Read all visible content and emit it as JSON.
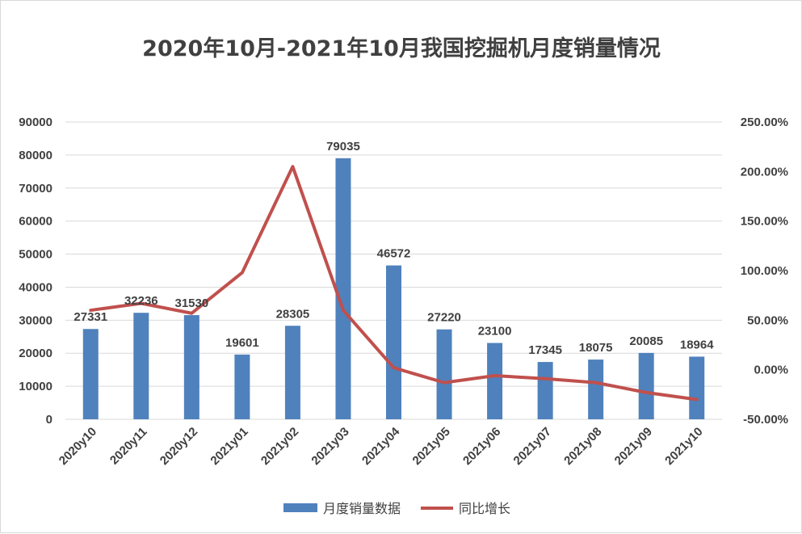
{
  "chart_data": {
    "type": "bar+line",
    "title": "2020年10月-2021年10月我国挖掘机月度销量情况",
    "categories": [
      "2020y10",
      "2020y11",
      "2020y12",
      "2021y01",
      "2021y02",
      "2021y03",
      "2021y04",
      "2021y05",
      "2021y06",
      "2021y07",
      "2021y08",
      "2021y09",
      "2021y10"
    ],
    "series": [
      {
        "name": "月度销量数据",
        "kind": "bar",
        "axis": "left",
        "color": "#4f81bd",
        "values": [
          27331,
          32236,
          31530,
          19601,
          28305,
          79035,
          46572,
          27220,
          23100,
          17345,
          18075,
          20085,
          18964
        ]
      },
      {
        "name": "同比增长",
        "kind": "line",
        "axis": "right",
        "color": "#c0504d",
        "values": [
          0.6,
          0.67,
          0.57,
          0.98,
          2.05,
          0.6,
          0.02,
          -0.13,
          -0.06,
          -0.09,
          -0.13,
          -0.23,
          -0.3
        ]
      }
    ],
    "y_left": {
      "min": 0,
      "max": 90000,
      "step": 10000
    },
    "y_right": {
      "min": -0.5,
      "max": 2.5,
      "step": 0.5
    },
    "y_right_ticks": [
      "-50.00%",
      "0.00%",
      "50.00%",
      "100.00%",
      "150.00%",
      "200.00%",
      "250.00%"
    ],
    "y_left_ticks": [
      "0",
      "10000",
      "20000",
      "30000",
      "40000",
      "50000",
      "60000",
      "70000",
      "80000",
      "90000"
    ],
    "grid": true,
    "legend": "bottom"
  }
}
